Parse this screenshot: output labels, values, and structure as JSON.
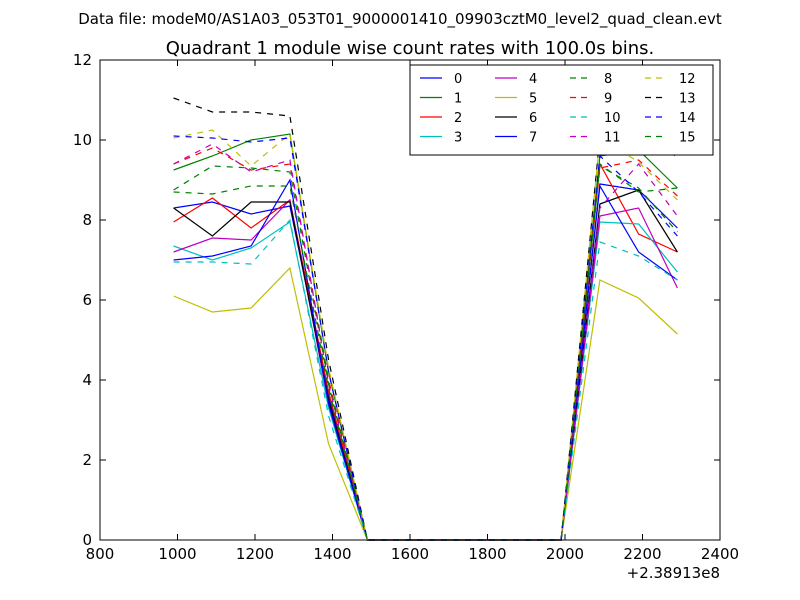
{
  "figure": {
    "header": "Data file: modeM0/AS1A03_053T01_9000001410_09903cztM0_level2_quad_clean.evt"
  },
  "chart_data": {
    "type": "line",
    "title": "Quadrant 1 module wise count rates with 100.0s bins.",
    "xlabel": "",
    "ylabel": "",
    "x_offset_label": "+2.38913e8",
    "xlim": [
      800,
      2400
    ],
    "ylim": [
      0,
      12
    ],
    "x_ticks": [
      800,
      1000,
      1200,
      1400,
      1600,
      1800,
      2000,
      2200,
      2400
    ],
    "y_ticks": [
      0,
      2,
      4,
      6,
      8,
      10,
      12
    ],
    "grid": false,
    "legend": "top-right",
    "x": [
      990,
      1090,
      1190,
      1290,
      1390,
      1490,
      1590,
      1690,
      1790,
      1890,
      1990,
      2090,
      2190,
      2290
    ],
    "series": [
      {
        "name": "0",
        "color": "#0000ff",
        "dash": false,
        "values": [
          8.3,
          8.45,
          8.15,
          8.35,
          3.6,
          0,
          0,
          0,
          0,
          0,
          0,
          8.9,
          8.75,
          7.8
        ]
      },
      {
        "name": "1",
        "color": "#008000",
        "dash": false,
        "values": [
          9.25,
          9.6,
          10.0,
          10.15,
          4.2,
          0,
          0,
          0,
          0,
          0,
          0,
          9.6,
          9.75,
          8.8
        ]
      },
      {
        "name": "2",
        "color": "#ff0000",
        "dash": false,
        "values": [
          7.95,
          8.55,
          7.8,
          8.5,
          3.7,
          0,
          0,
          0,
          0,
          0,
          0,
          9.4,
          7.65,
          7.2
        ]
      },
      {
        "name": "3",
        "color": "#00bfbf",
        "dash": false,
        "values": [
          7.35,
          7.0,
          7.3,
          7.95,
          3.3,
          0,
          0,
          0,
          0,
          0,
          0,
          7.95,
          7.9,
          6.7
        ]
      },
      {
        "name": "4",
        "color": "#bf00bf",
        "dash": false,
        "values": [
          7.2,
          7.55,
          7.5,
          8.5,
          3.4,
          0,
          0,
          0,
          0,
          0,
          0,
          8.1,
          8.3,
          6.3
        ]
      },
      {
        "name": "5",
        "color": "#bfbf00",
        "dash": false,
        "values": [
          6.1,
          5.7,
          5.8,
          6.8,
          2.4,
          0,
          0,
          0,
          0,
          0,
          0,
          6.5,
          6.05,
          5.15
        ]
      },
      {
        "name": "6",
        "color": "#000000",
        "dash": false,
        "values": [
          8.3,
          7.6,
          8.45,
          8.45,
          3.5,
          0,
          0,
          0,
          0,
          0,
          0,
          8.4,
          8.75,
          7.2
        ]
      },
      {
        "name": "7",
        "color": "#0000ff",
        "dash": false,
        "values": [
          7.0,
          7.1,
          7.35,
          9.0,
          3.4,
          0,
          0,
          0,
          0,
          0,
          0,
          8.85,
          7.2,
          6.5
        ]
      },
      {
        "name": "8",
        "color": "#008000",
        "dash": true,
        "values": [
          8.7,
          8.65,
          8.85,
          8.85,
          3.8,
          0,
          0,
          0,
          0,
          0,
          0,
          9.35,
          8.8,
          7.7
        ]
      },
      {
        "name": "9",
        "color": "#ff0000",
        "dash": true,
        "values": [
          9.4,
          9.8,
          9.25,
          9.4,
          4.0,
          0,
          0,
          0,
          0,
          0,
          0,
          9.3,
          9.5,
          8.6
        ]
      },
      {
        "name": "10",
        "color": "#00bfbf",
        "dash": true,
        "values": [
          6.95,
          6.95,
          6.9,
          8.0,
          3.1,
          0,
          0,
          0,
          0,
          0,
          0,
          7.45,
          7.1,
          6.5
        ]
      },
      {
        "name": "11",
        "color": "#bf00bf",
        "dash": true,
        "values": [
          9.4,
          9.9,
          9.2,
          9.5,
          3.9,
          0,
          0,
          0,
          0,
          0,
          0,
          8.3,
          9.4,
          8.1
        ]
      },
      {
        "name": "12",
        "color": "#bfbf00",
        "dash": true,
        "values": [
          10.05,
          10.25,
          9.35,
          10.15,
          4.3,
          0,
          0,
          0,
          0,
          0,
          0,
          10.05,
          9.45,
          8.5
        ]
      },
      {
        "name": "13",
        "color": "#000000",
        "dash": true,
        "values": [
          11.05,
          10.7,
          10.7,
          10.6,
          4.5,
          0,
          0,
          0,
          0,
          0,
          0,
          10.1,
          10.95,
          9.5
        ]
      },
      {
        "name": "14",
        "color": "#0000ff",
        "dash": true,
        "values": [
          10.1,
          10.05,
          9.95,
          10.05,
          4.2,
          0,
          0,
          0,
          0,
          0,
          0,
          9.6,
          8.7,
          7.6
        ]
      },
      {
        "name": "15",
        "color": "#008000",
        "dash": true,
        "values": [
          8.75,
          9.35,
          9.3,
          9.2,
          3.9,
          0,
          0,
          0,
          0,
          0,
          0,
          9.4,
          8.7,
          8.8
        ]
      }
    ]
  }
}
